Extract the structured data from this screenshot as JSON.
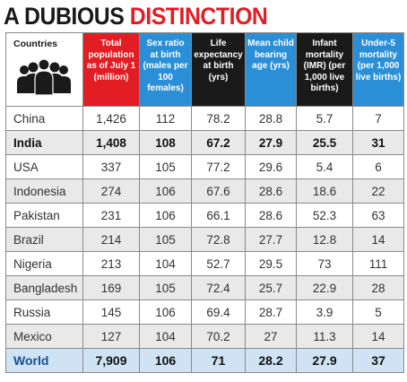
{
  "title": {
    "part1": "A DUBIOUS ",
    "part2": "DISTINCTION"
  },
  "colors": {
    "red": "#e21d24",
    "blue": "#2a8fd6",
    "black": "#1a1a1a",
    "world_row": "#cfe3f4"
  },
  "headers": {
    "countries": "Countries",
    "population": "Total population as of July 1 (million)",
    "sex_ratio": "Sex ratio at birth (males per 100 females)",
    "life_expectancy": "Life expectancy at birth (yrs)",
    "mean_child_bearing_age": "Mean child bearing age (yrs)",
    "infant_mortality": "Infant mortality (IMR) (per 1,000 live births)",
    "under5_mortality": "Under-5 mortality (per 1,000 live births)"
  },
  "header_icon": "people-group-icon",
  "rows": [
    {
      "country": "China",
      "population": "1,426",
      "sex_ratio": "112",
      "life_expectancy": "78.2",
      "mcba": "28.8",
      "imr": "5.7",
      "u5": "7"
    },
    {
      "country": "India",
      "population": "1,408",
      "sex_ratio": "108",
      "life_expectancy": "67.2",
      "mcba": "27.9",
      "imr": "25.5",
      "u5": "31"
    },
    {
      "country": "USA",
      "population": "337",
      "sex_ratio": "105",
      "life_expectancy": "77.2",
      "mcba": "29.6",
      "imr": "5.4",
      "u5": "6"
    },
    {
      "country": "Indonesia",
      "population": "274",
      "sex_ratio": "106",
      "life_expectancy": "67.6",
      "mcba": "28.6",
      "imr": "18.6",
      "u5": "22"
    },
    {
      "country": "Pakistan",
      "population": "231",
      "sex_ratio": "106",
      "life_expectancy": "66.1",
      "mcba": "28.6",
      "imr": "52.3",
      "u5": "63"
    },
    {
      "country": "Brazil",
      "population": "214",
      "sex_ratio": "105",
      "life_expectancy": "72.8",
      "mcba": "27.7",
      "imr": "12.8",
      "u5": "14"
    },
    {
      "country": "Nigeria",
      "population": "213",
      "sex_ratio": "104",
      "life_expectancy": "52.7",
      "mcba": "29.5",
      "imr": "73",
      "u5": "111"
    },
    {
      "country": "Bangladesh",
      "population": "169",
      "sex_ratio": "105",
      "life_expectancy": "72.4",
      "mcba": "25.7",
      "imr": "22.9",
      "u5": "28"
    },
    {
      "country": "Russia",
      "population": "145",
      "sex_ratio": "106",
      "life_expectancy": "69.4",
      "mcba": "28.7",
      "imr": "3.9",
      "u5": "5"
    },
    {
      "country": "Mexico",
      "population": "127",
      "sex_ratio": "104",
      "life_expectancy": "70.2",
      "mcba": "27",
      "imr": "11.3",
      "u5": "14"
    }
  ],
  "world": {
    "country": "World",
    "population": "7,909",
    "sex_ratio": "106",
    "life_expectancy": "71",
    "mcba": "28.2",
    "imr": "27.9",
    "u5": "37"
  }
}
